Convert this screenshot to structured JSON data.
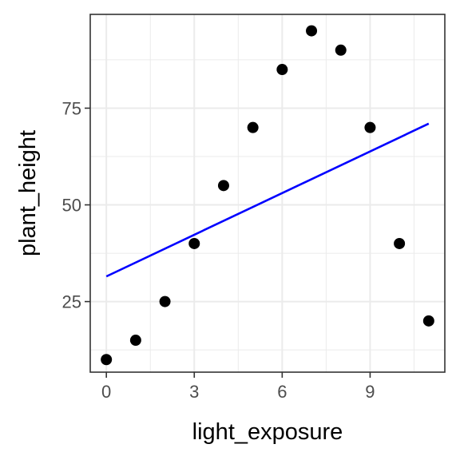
{
  "chart_data": {
    "type": "scatter",
    "title": "",
    "xlabel": "light_exposure",
    "ylabel": "plant_height",
    "xlim": [
      -0.55,
      11.55
    ],
    "ylim": [
      6.75,
      99.25
    ],
    "x_ticks": [
      0,
      3,
      6,
      9
    ],
    "x_tick_labels": [
      "0",
      "3",
      "6",
      "9"
    ],
    "x_minor": [
      1.5,
      4.5,
      7.5,
      10.5
    ],
    "y_ticks": [
      25,
      50,
      75
    ],
    "y_tick_labels": [
      "25",
      "50",
      "75"
    ],
    "y_minor": [
      12.5,
      37.5,
      62.5,
      87.5
    ],
    "grid": true,
    "theme": "bw",
    "series": [
      {
        "kind": "points",
        "color": "#000000",
        "x": [
          0,
          1,
          2,
          3,
          4,
          5,
          6,
          7,
          8,
          9,
          10,
          11
        ],
        "y": [
          10,
          15,
          25,
          40,
          55,
          70,
          85,
          95,
          90,
          70,
          40,
          20
        ]
      },
      {
        "kind": "fit-line",
        "color": "#0000ff",
        "x": [
          0,
          11
        ],
        "y": [
          31.5,
          71.0
        ]
      }
    ]
  }
}
